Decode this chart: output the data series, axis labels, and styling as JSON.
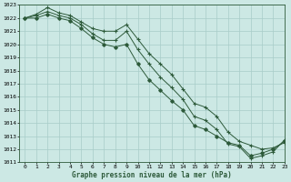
{
  "title": "Graphe pression niveau de la mer (hPa)",
  "bg_color": "#cce8e4",
  "grid_color": "#a8ccc8",
  "line_color": "#2d5a3a",
  "marker_color": "#2d5a3a",
  "xlim": [
    -0.5,
    23
  ],
  "ylim": [
    1011,
    1023
  ],
  "xticks": [
    0,
    1,
    2,
    3,
    4,
    5,
    6,
    7,
    8,
    9,
    10,
    11,
    12,
    13,
    14,
    15,
    16,
    17,
    18,
    19,
    20,
    21,
    22,
    23
  ],
  "yticks": [
    1011,
    1012,
    1013,
    1014,
    1015,
    1016,
    1017,
    1018,
    1019,
    1020,
    1021,
    1022,
    1023
  ],
  "line1_x": [
    0,
    1,
    2,
    3,
    4,
    5,
    6,
    7,
    8,
    9,
    10,
    11,
    12,
    13,
    14,
    15,
    16,
    17,
    18,
    19,
    20,
    21,
    22,
    23
  ],
  "line1_y": [
    1022.0,
    1022.3,
    1022.8,
    1022.4,
    1022.2,
    1021.7,
    1021.2,
    1021.0,
    1021.0,
    1021.5,
    1020.4,
    1019.3,
    1018.5,
    1017.7,
    1016.6,
    1015.5,
    1015.2,
    1014.5,
    1013.3,
    1012.6,
    1012.3,
    1012.0,
    1012.1,
    1012.5
  ],
  "line2_x": [
    0,
    1,
    2,
    3,
    4,
    5,
    6,
    7,
    8,
    9,
    10,
    11,
    12,
    13,
    14,
    15,
    16,
    17,
    18,
    19,
    20,
    21,
    22,
    23
  ],
  "line2_y": [
    1022.0,
    1022.2,
    1022.5,
    1022.2,
    1022.0,
    1021.5,
    1020.8,
    1020.3,
    1020.3,
    1021.0,
    1019.6,
    1018.5,
    1017.5,
    1016.7,
    1015.8,
    1014.5,
    1014.2,
    1013.5,
    1012.4,
    1012.2,
    1011.3,
    1011.5,
    1011.8,
    1012.7
  ],
  "line3_x": [
    0,
    1,
    2,
    3,
    4,
    5,
    6,
    7,
    8,
    9,
    10,
    11,
    12,
    13,
    14,
    15,
    16,
    17,
    18,
    19,
    20,
    21,
    22,
    23
  ],
  "line3_y": [
    1022.0,
    1022.0,
    1022.3,
    1022.0,
    1021.8,
    1021.2,
    1020.5,
    1020.0,
    1019.8,
    1020.0,
    1018.5,
    1017.3,
    1016.5,
    1015.7,
    1015.0,
    1013.8,
    1013.5,
    1013.0,
    1012.5,
    1012.3,
    1011.5,
    1011.7,
    1012.0,
    1012.6
  ]
}
